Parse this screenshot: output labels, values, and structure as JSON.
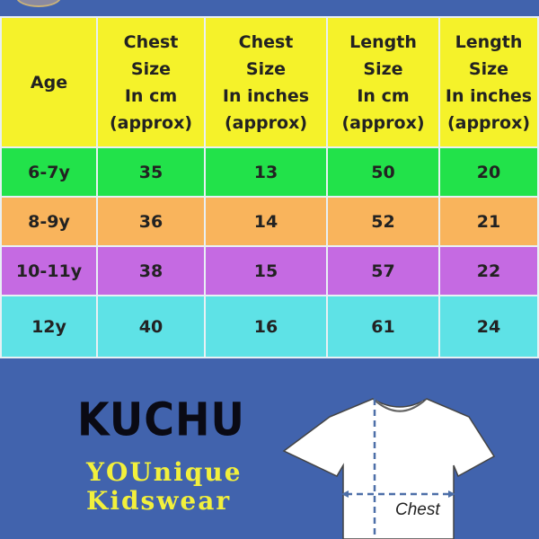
{
  "table": {
    "headers": [
      "Age",
      [
        "Chest",
        "Size",
        "In cm",
        "(approx)"
      ],
      [
        "Chest",
        "Size",
        "In inches",
        "(approx)"
      ],
      [
        "Length",
        "Size",
        "In cm",
        "(approx)"
      ],
      [
        "Length",
        "Size",
        "In inches",
        "(approx)"
      ]
    ],
    "rows": [
      [
        "6-7y",
        "35",
        "13",
        "50",
        "20"
      ],
      [
        "8-9y",
        "36",
        "14",
        "52",
        "21"
      ],
      [
        "10-11y",
        "38",
        "15",
        "57",
        "22"
      ],
      [
        "12y",
        "40",
        "16",
        "61",
        "24"
      ]
    ],
    "row_colors": [
      "#22e24a",
      "#f9b45c",
      "#c56ae2",
      "#5ee2e6"
    ],
    "header_color": "#f5f22a"
  },
  "brand": {
    "name": "KUCHU",
    "tagline_1": "YOUnique",
    "tagline_2": "Kidswear"
  },
  "diagram": {
    "chest_label": "Chest"
  },
  "colors": {
    "background": "#4163ad",
    "tagline": "#f2f03c"
  }
}
